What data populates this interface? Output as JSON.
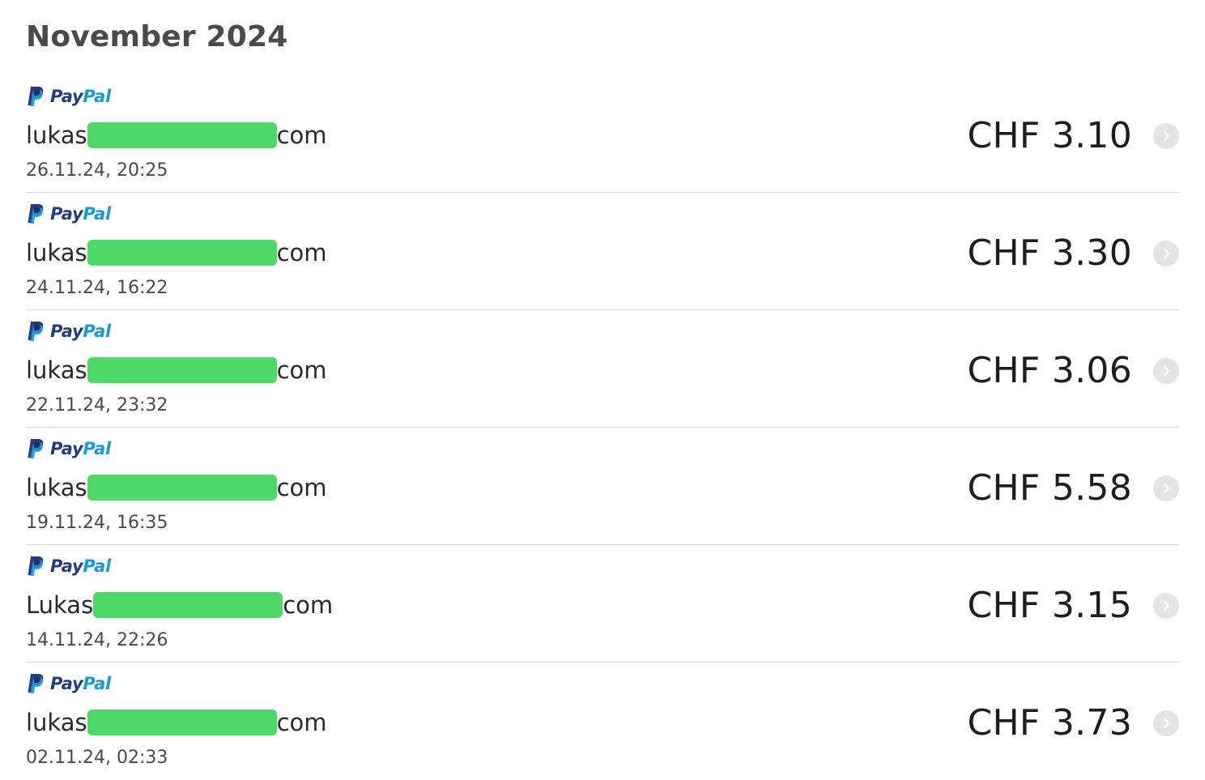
{
  "section": {
    "title": "November 2024"
  },
  "brand": {
    "pay": "Pay",
    "pal": "Pal",
    "colors": {
      "dark": "#253b80",
      "light": "#179bd7"
    }
  },
  "transactions": [
    {
      "provider": "PayPal",
      "email_prefix": "lukas",
      "email_suffix": "com",
      "date": "26.11.24, 20:25",
      "amount": "CHF 3.10"
    },
    {
      "provider": "PayPal",
      "email_prefix": "lukas",
      "email_suffix": "com",
      "date": "24.11.24, 16:22",
      "amount": "CHF 3.30"
    },
    {
      "provider": "PayPal",
      "email_prefix": "lukas",
      "email_suffix": "com",
      "date": "22.11.24, 23:32",
      "amount": "CHF 3.06"
    },
    {
      "provider": "PayPal",
      "email_prefix": "lukas",
      "email_suffix": "com",
      "date": "19.11.24, 16:35",
      "amount": "CHF 5.58"
    },
    {
      "provider": "PayPal",
      "email_prefix": "Lukas",
      "email_suffix": "com",
      "date": "14.11.24, 22:26",
      "amount": "CHF 3.15"
    },
    {
      "provider": "PayPal",
      "email_prefix": "lukas",
      "email_suffix": "com",
      "date": "02.11.24, 02:33",
      "amount": "CHF 3.73"
    }
  ],
  "icons": {
    "provider": "paypal-logo-icon",
    "row_action": "chevron-right-icon"
  },
  "colors": {
    "redaction": "#4fd86a",
    "chevron_bg": "#e4e4e4"
  }
}
